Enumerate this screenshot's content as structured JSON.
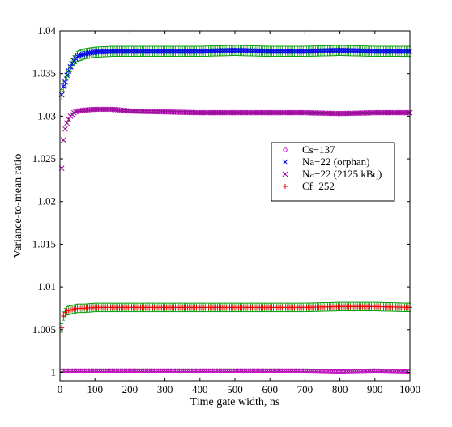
{
  "chart_data": {
    "type": "scatter",
    "title": "",
    "xlabel": "Time gate width, ns",
    "ylabel": "Variance-to-mean ratio",
    "xlim": [
      0,
      1000
    ],
    "ylim": [
      0.999,
      1.04
    ],
    "xticks": [
      0,
      100,
      200,
      300,
      400,
      500,
      600,
      700,
      800,
      900,
      1000
    ],
    "yticks": [
      1,
      1.005,
      1.01,
      1.015,
      1.02,
      1.025,
      1.03,
      1.035,
      1.04
    ],
    "ytick_labels": [
      "1",
      "1.005",
      "1.01",
      "1.015",
      "1.02",
      "1.025",
      "1.03",
      "1.035",
      "1.04"
    ],
    "grid": false,
    "legend_position": "center-right",
    "errorbar_color": "#009900",
    "series": [
      {
        "name": "Cs−137",
        "marker": "circle",
        "color": "#cc00cc",
        "x": [
          5,
          10,
          20,
          50,
          100,
          200,
          300,
          400,
          500,
          600,
          700,
          800,
          900,
          1000
        ],
        "y": [
          1.0002,
          1.0002,
          1.0002,
          1.0002,
          1.0002,
          1.0002,
          1.0002,
          1.0002,
          1.0002,
          1.0002,
          1.0002,
          1.0001,
          1.0002,
          1.0001
        ],
        "error": [
          0.0001,
          0.0001,
          0.0001,
          0.0001,
          0.0001,
          0.0001,
          0.0001,
          0.0001,
          0.0001,
          0.0001,
          0.0001,
          0.0001,
          0.0001,
          0.0001
        ]
      },
      {
        "name": "Na−22 (orphan)",
        "marker": "x",
        "color": "#0000ee",
        "x": [
          5,
          10,
          15,
          20,
          30,
          40,
          50,
          70,
          100,
          150,
          200,
          300,
          400,
          500,
          600,
          700,
          800,
          900,
          1000
        ],
        "y": [
          1.0325,
          1.0335,
          1.034,
          1.0348,
          1.0358,
          1.0365,
          1.037,
          1.0373,
          1.0375,
          1.0376,
          1.0376,
          1.0376,
          1.0376,
          1.0377,
          1.0376,
          1.0376,
          1.0377,
          1.0376,
          1.0376
        ],
        "error": [
          0.0006,
          0.0006,
          0.0006,
          0.0006,
          0.0006,
          0.0006,
          0.0006,
          0.0006,
          0.0006,
          0.0006,
          0.0006,
          0.0006,
          0.0006,
          0.0006,
          0.0006,
          0.0006,
          0.0006,
          0.0006,
          0.0006
        ]
      },
      {
        "name": "Na−22 (2125 kBq)",
        "marker": "x",
        "color": "#aa00aa",
        "x": [
          5,
          10,
          15,
          20,
          30,
          40,
          50,
          70,
          100,
          150,
          200,
          300,
          400,
          500,
          600,
          700,
          800,
          900,
          1000
        ],
        "y": [
          1.0239,
          1.0272,
          1.0285,
          1.0292,
          1.03,
          1.0304,
          1.0306,
          1.0307,
          1.0308,
          1.0308,
          1.0306,
          1.0305,
          1.0304,
          1.0304,
          1.0304,
          1.0304,
          1.0303,
          1.0304,
          1.0304
        ],
        "error": [
          0.0001,
          0.0001,
          0.0001,
          0.0001,
          0.0001,
          0.0001,
          0.0001,
          0.0001,
          0.0001,
          0.0001,
          0.0001,
          0.0001,
          0.0001,
          0.0001,
          0.0001,
          0.0001,
          0.0001,
          0.0001,
          0.0001
        ]
      },
      {
        "name": "Cf−252",
        "marker": "plus",
        "color": "#ee0000",
        "x": [
          5,
          10,
          15,
          20,
          30,
          40,
          50,
          70,
          100,
          150,
          200,
          300,
          400,
          500,
          600,
          700,
          800,
          900,
          1000
        ],
        "y": [
          1.0052,
          1.0066,
          1.007,
          1.0072,
          1.0073,
          1.0074,
          1.0075,
          1.0075,
          1.0076,
          1.0076,
          1.0076,
          1.0076,
          1.0076,
          1.0076,
          1.0076,
          1.0076,
          1.0077,
          1.0077,
          1.0076
        ],
        "error": [
          0.0005,
          0.0005,
          0.0005,
          0.0005,
          0.0005,
          0.0005,
          0.0005,
          0.0005,
          0.0005,
          0.0005,
          0.0005,
          0.0005,
          0.0005,
          0.0005,
          0.0005,
          0.0005,
          0.0005,
          0.0005,
          0.0005
        ]
      }
    ]
  }
}
